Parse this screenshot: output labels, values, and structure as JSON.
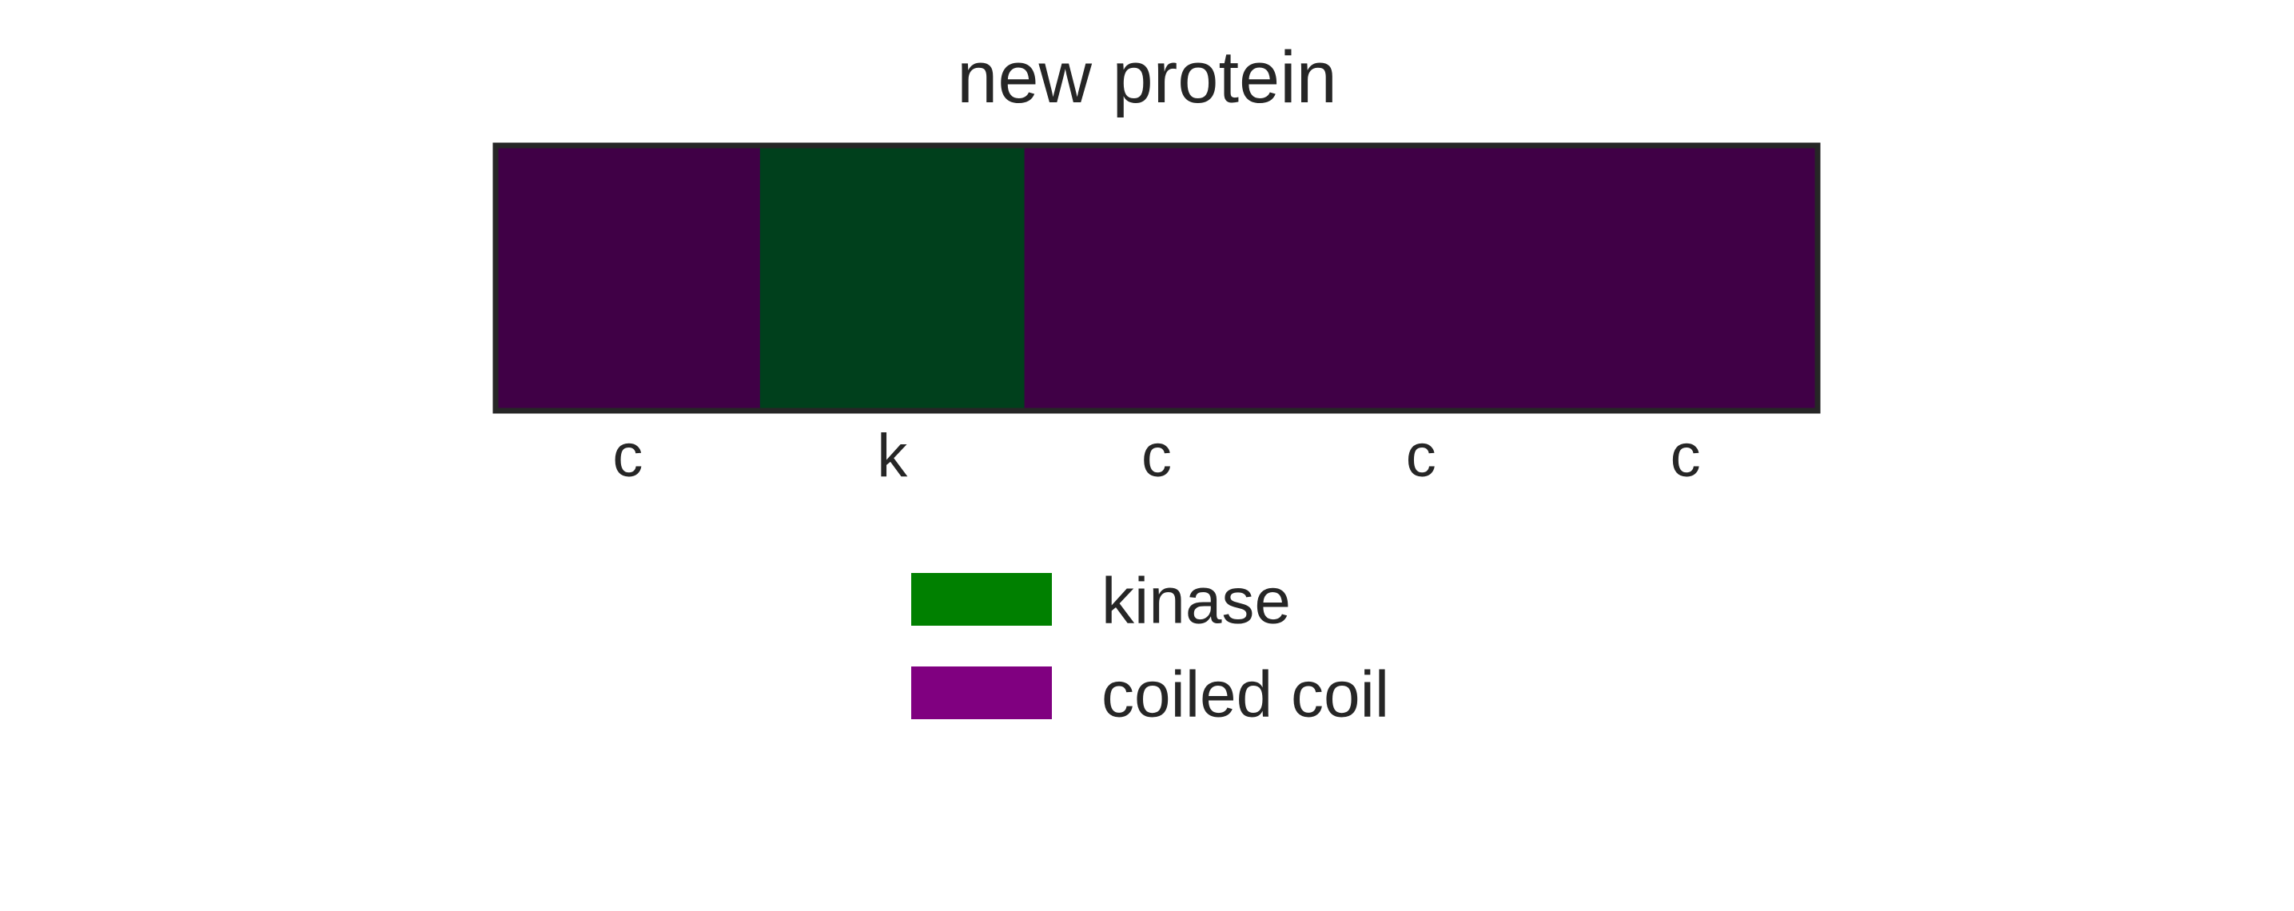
{
  "chart_data": {
    "type": "heatmap",
    "title": "new protein",
    "xlabel": "",
    "ylabel": "",
    "categories": [
      "c",
      "k",
      "c",
      "c",
      "c"
    ],
    "values": [
      "coiled coil",
      "kinase",
      "coiled coil",
      "coiled coil",
      "coiled coil"
    ],
    "grid": false,
    "legend_position": "bottom-center",
    "legend": [
      {
        "key": "k",
        "label": "kinase",
        "color": "#008000",
        "cell_color": "#00401c"
      },
      {
        "key": "c",
        "label": "coiled coil",
        "color": "#800080",
        "cell_color": "#400046"
      }
    ],
    "frame_color": "#262626"
  }
}
